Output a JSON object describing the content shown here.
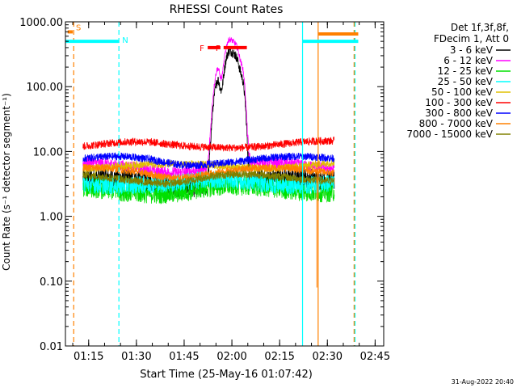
{
  "chart_data": {
    "type": "line",
    "title": "RHESSI Count Rates",
    "xlabel": "Start Time (25-May-16 01:07:42)",
    "ylabel": "Count Rate (s⁻¹ detector segment⁻¹)",
    "yscale": "log",
    "ylim": [
      0.01,
      1000
    ],
    "xlim_minutes": [
      0,
      100
    ],
    "y_ticks": [
      {
        "v": 0.01,
        "label": "0.01"
      },
      {
        "v": 0.1,
        "label": "0.10"
      },
      {
        "v": 1,
        "label": "1.00"
      },
      {
        "v": 10,
        "label": "10.00"
      },
      {
        "v": 100,
        "label": "100.00"
      },
      {
        "v": 1000,
        "label": "1000.00"
      }
    ],
    "x_ticks": [
      {
        "m": 7.3,
        "label": "01:15"
      },
      {
        "m": 22.3,
        "label": "01:30"
      },
      {
        "m": 37.3,
        "label": "01:45"
      },
      {
        "m": 52.3,
        "label": "02:00"
      },
      {
        "m": 67.3,
        "label": "02:15"
      },
      {
        "m": 82.3,
        "label": "02:30"
      },
      {
        "m": 97.3,
        "label": "02:45"
      }
    ],
    "legend": {
      "header": [
        "Det 1f,3f,8f,",
        "FDecim 1, Att 0"
      ],
      "placement": "right"
    },
    "series": [
      {
        "name": "3 - 6 keV",
        "color": "#000000",
        "level": 3.5,
        "noise": 0.16,
        "peak": 220
      },
      {
        "name": "6 - 12 keV",
        "color": "#ff00ff",
        "level": 6.0,
        "noise": 0.09,
        "peak": 330
      },
      {
        "name": "12 - 25 keV",
        "color": "#00e000",
        "level": 2.7,
        "noise": 0.16,
        "peak": 0
      },
      {
        "name": "25 - 50 keV",
        "color": "#00ffff",
        "level": 3.4,
        "noise": 0.14,
        "peak": 0
      },
      {
        "name": "50 - 100 keV",
        "color": "#e0c000",
        "level": 6.2,
        "noise": 0.06,
        "peak": 0
      },
      {
        "name": "100 - 300 keV",
        "color": "#ff0000",
        "level": 13.0,
        "noise": 0.06,
        "peak": 0
      },
      {
        "name": "300 - 800 keV",
        "color": "#0000ff",
        "level": 7.5,
        "noise": 0.06,
        "peak": 0
      },
      {
        "name": "800 - 7000 keV",
        "color": "#ff8000",
        "level": 5.0,
        "noise": 0.06,
        "peak": 0
      },
      {
        "name": "7000 - 15000 keV",
        "color": "#808000",
        "level": 4.0,
        "noise": 0.06,
        "peak": 0
      }
    ],
    "flags": [
      {
        "label": "S",
        "color": "#ff8000",
        "start": 0.7,
        "end": 2.3,
        "y": 700
      },
      {
        "label": "N",
        "color": "#00ffff",
        "start": 0,
        "end": 16.8,
        "y": 500
      },
      {
        "label": "F",
        "color": "#ff0000",
        "start": 44.7,
        "end": 48.7,
        "y": 400
      },
      {
        "label": "F",
        "color": "#ff0000",
        "start": 49.7,
        "end": 57.0,
        "y": 400
      },
      {
        "label": "",
        "color": "#00ffff",
        "start": 74.5,
        "end": 92.0,
        "y": 500
      },
      {
        "label": "",
        "color": "#ff8000",
        "start": 79.5,
        "end": 92.0,
        "y": 650
      }
    ],
    "vertical_lines": [
      {
        "m": 2.6,
        "color": "#ff8000",
        "dashed": true
      },
      {
        "m": 16.8,
        "color": "#00ffff",
        "dashed": true
      },
      {
        "m": 74.5,
        "color": "#00ffff",
        "dashed": false
      },
      {
        "m": 79.4,
        "color": "#ff8000",
        "dashed": false
      },
      {
        "m": 90.7,
        "color": "#ff8000",
        "dashed": true
      },
      {
        "m": 91.0,
        "color": "#00ffff",
        "dashed": true
      }
    ],
    "flare": {
      "start": 43.5,
      "end": 58.0
    }
  },
  "footer_date": "31-Aug-2022 20:40"
}
